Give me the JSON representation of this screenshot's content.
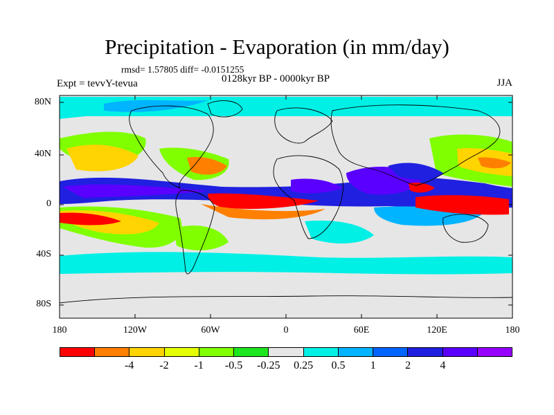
{
  "figure": {
    "title": "Precipitation - Evaporation (in mm/day)",
    "stats": "rmsd= 1.57805 diff= -0.0151255",
    "period": "0128kyr BP - 0000kyr BP",
    "experiment": "Expt = tevvY-tevua",
    "season": "JJA"
  },
  "axes": {
    "y_labels": [
      "80N",
      "40N",
      "0",
      "40S",
      "80S"
    ],
    "x_labels": [
      "180",
      "120W",
      "60W",
      "0",
      "60E",
      "120E",
      "180"
    ]
  },
  "colorbar": {
    "colors": [
      "#ff0000",
      "#ff8000",
      "#ffd400",
      "#e6ff00",
      "#80ff00",
      "#1ee61e",
      "#e6e6e6",
      "#00f0e6",
      "#00b4ff",
      "#0064ff",
      "#2020e0",
      "#5a00ff",
      "#9600ff"
    ],
    "labels": [
      "-4",
      "-2",
      "-1",
      "-0.5",
      "-0.25",
      "0.25",
      "0.5",
      "1",
      "2",
      "4"
    ]
  }
}
